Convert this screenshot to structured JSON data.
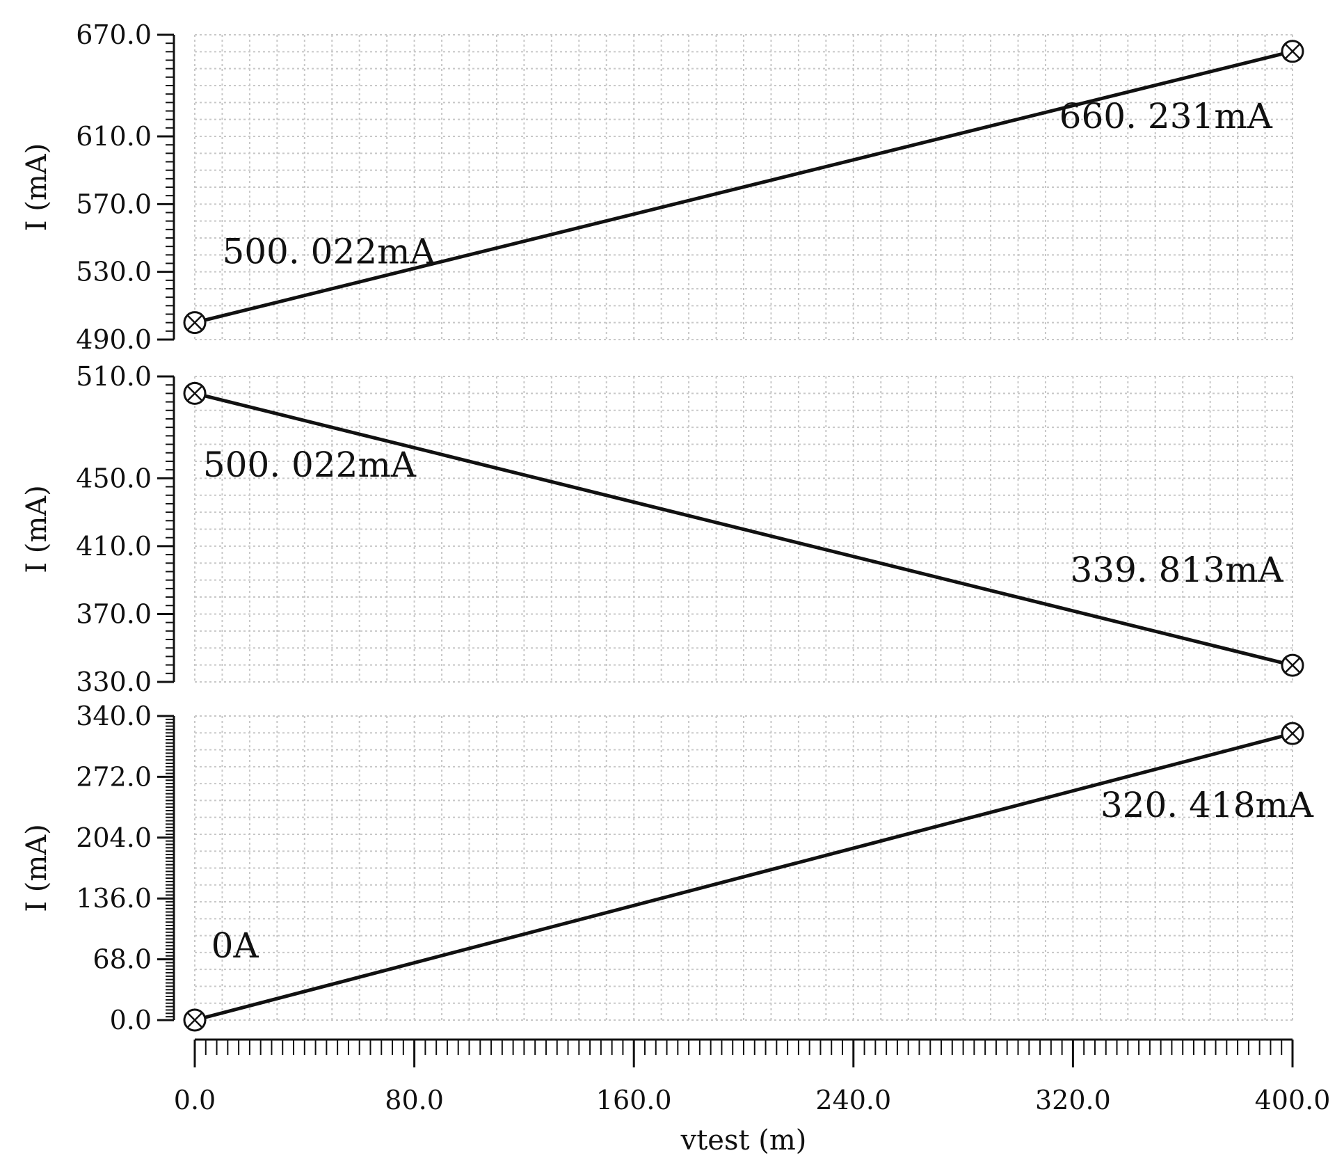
{
  "chart_data": [
    {
      "type": "line",
      "ylabel": "I (mA)",
      "ylim": [
        490.0,
        670.0
      ],
      "yticks": [
        "490.0",
        "530.0",
        "570.0",
        "610.0",
        "670.0"
      ],
      "yticks_values": [
        490,
        530,
        570,
        610,
        670
      ],
      "x": [
        0,
        400
      ],
      "y": [
        500.022,
        660.231
      ],
      "markers": "circle-x",
      "grid": true,
      "annotations": [
        {
          "text": "500. 022mA",
          "x": 10,
          "y": 535
        },
        {
          "text": "660. 231mA",
          "x": 315,
          "y": 615
        }
      ]
    },
    {
      "type": "line",
      "ylabel": "I (mA)",
      "ylim": [
        330.0,
        510.0
      ],
      "yticks": [
        "330.0",
        "370.0",
        "410.0",
        "450.0",
        "510.0"
      ],
      "yticks_values": [
        330,
        370,
        410,
        450,
        510
      ],
      "x": [
        0,
        400
      ],
      "y": [
        500.022,
        339.813
      ],
      "markers": "circle-x",
      "grid": true,
      "annotations": [
        {
          "text": "500. 022mA",
          "x": 3,
          "y": 451
        },
        {
          "text": "339. 813mA",
          "x": 319,
          "y": 389
        }
      ]
    },
    {
      "type": "line",
      "ylabel": "I (mA)",
      "ylim": [
        0.0,
        340.0
      ],
      "yticks": [
        "0.0",
        "68.0",
        "136.0",
        "204.0",
        "272.0",
        "340.0"
      ],
      "yticks_values": [
        0,
        68,
        136,
        204,
        272,
        340
      ],
      "x": [
        0,
        400
      ],
      "y": [
        0,
        320.418
      ],
      "markers": "circle-x",
      "grid": true,
      "annotations": [
        {
          "text": "0A",
          "x": 6,
          "y": 70
        },
        {
          "text": "320. 418mA",
          "x": 330,
          "y": 227
        }
      ]
    }
  ],
  "x_axis": {
    "label": "vtest (m)",
    "xlim": [
      0.0,
      400.0
    ],
    "ticks": [
      "0.0",
      "80.0",
      "160.0",
      "240.0",
      "320.0",
      "400.0"
    ],
    "ticks_values": [
      0,
      80,
      160,
      240,
      320,
      400
    ]
  },
  "colors": {
    "line": "#111111",
    "grid": "#c8c8c8",
    "background": "#ffffff"
  }
}
